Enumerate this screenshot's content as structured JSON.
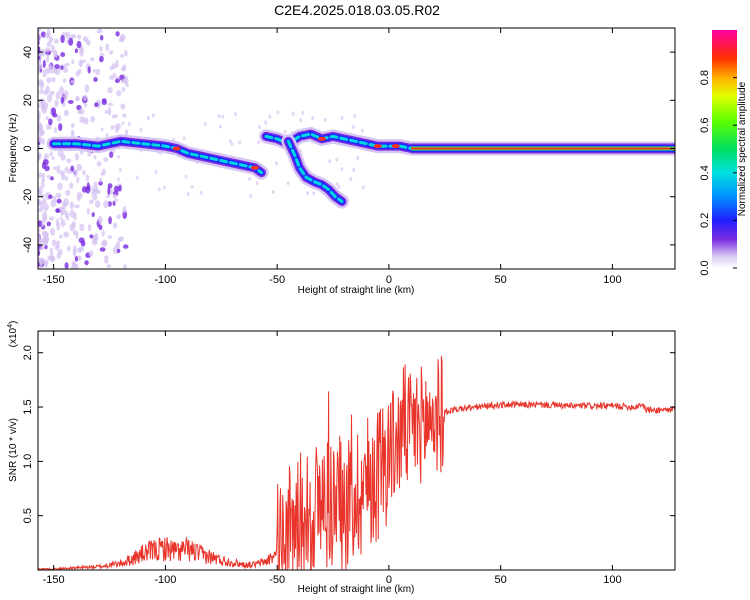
{
  "title": "C2E4.2025.018.03.05.R02",
  "chart_data": [
    {
      "type": "heatmap",
      "xlabel": "Height of straight line (km)",
      "ylabel": "Frequency (Hz)",
      "xlim": [
        -157,
        128
      ],
      "ylim": [
        -50,
        50
      ],
      "xticks": [
        -150,
        -100,
        -50,
        0,
        50,
        100
      ],
      "yticks": [
        -40,
        -20,
        0,
        20,
        40
      ],
      "colorbar": {
        "label": "Normalized spectral amplitude",
        "range": [
          0,
          1
        ],
        "ticks": [
          0.0,
          0.2,
          0.4,
          0.6,
          0.8
        ]
      },
      "ridge_main": [
        [
          -150,
          2
        ],
        [
          -140,
          2
        ],
        [
          -130,
          1
        ],
        [
          -120,
          3
        ],
        [
          -110,
          2
        ],
        [
          -100,
          1
        ],
        [
          -95,
          0
        ],
        [
          -90,
          -2
        ],
        [
          -85,
          -3
        ],
        [
          -80,
          -4
        ],
        [
          -75,
          -5
        ],
        [
          -70,
          -6
        ],
        [
          -65,
          -7
        ],
        [
          -60,
          -8
        ],
        [
          -57,
          -10
        ],
        [
          -55,
          5
        ],
        [
          -50,
          4
        ],
        [
          -45,
          2
        ],
        [
          -40,
          5
        ],
        [
          -35,
          6
        ],
        [
          -30,
          4
        ],
        [
          -25,
          5
        ],
        [
          -20,
          4
        ],
        [
          -15,
          3
        ],
        [
          -10,
          2
        ],
        [
          -5,
          1
        ],
        [
          0,
          1
        ],
        [
          5,
          1
        ],
        [
          10,
          0
        ],
        [
          20,
          0
        ],
        [
          50,
          0
        ],
        [
          80,
          0
        ],
        [
          100,
          0
        ],
        [
          128,
          0
        ]
      ],
      "ridge_branch": [
        [
          -45,
          3
        ],
        [
          -42,
          -3
        ],
        [
          -40,
          -8
        ],
        [
          -37,
          -12
        ],
        [
          -33,
          -14
        ],
        [
          -30,
          -15
        ],
        [
          -27,
          -17
        ],
        [
          -24,
          -20
        ],
        [
          -21,
          -22
        ]
      ]
    },
    {
      "type": "line",
      "xlabel": "Height of straight line (km)",
      "ylabel": "SNR (10 * v/v)",
      "yscale_note": "(x10^4)",
      "xlim": [
        -157,
        128
      ],
      "ylim": [
        0,
        2.2
      ],
      "xticks": [
        -150,
        -100,
        -50,
        0,
        50,
        100
      ],
      "yticks": [
        0.5,
        1.0,
        1.5,
        2.0
      ],
      "color": "#e8342a",
      "x": [
        -157,
        -150,
        -140,
        -130,
        -120,
        -115,
        -110,
        -105,
        -100,
        -95,
        -90,
        -85,
        -80,
        -75,
        -70,
        -65,
        -60,
        -55,
        -50,
        -45,
        -40,
        -35,
        -30,
        -25,
        -20,
        -15,
        -10,
        -5,
        0,
        5,
        7,
        8,
        10,
        15,
        20,
        25,
        30,
        40,
        50,
        60,
        70,
        80,
        90,
        100,
        110,
        113,
        115,
        118,
        128
      ],
      "y": [
        0.01,
        0.01,
        0.02,
        0.03,
        0.06,
        0.1,
        0.15,
        0.18,
        0.2,
        0.17,
        0.19,
        0.15,
        0.12,
        0.09,
        0.07,
        0.05,
        0.05,
        0.08,
        0.15,
        0.3,
        0.45,
        0.55,
        0.6,
        0.65,
        0.55,
        0.7,
        0.8,
        0.9,
        1.1,
        1.2,
        1.4,
        1.25,
        1.3,
        1.35,
        1.4,
        1.45,
        1.48,
        1.5,
        1.52,
        1.52,
        1.52,
        1.51,
        1.51,
        1.51,
        1.5,
        1.53,
        1.48,
        1.47,
        1.48
      ]
    }
  ]
}
